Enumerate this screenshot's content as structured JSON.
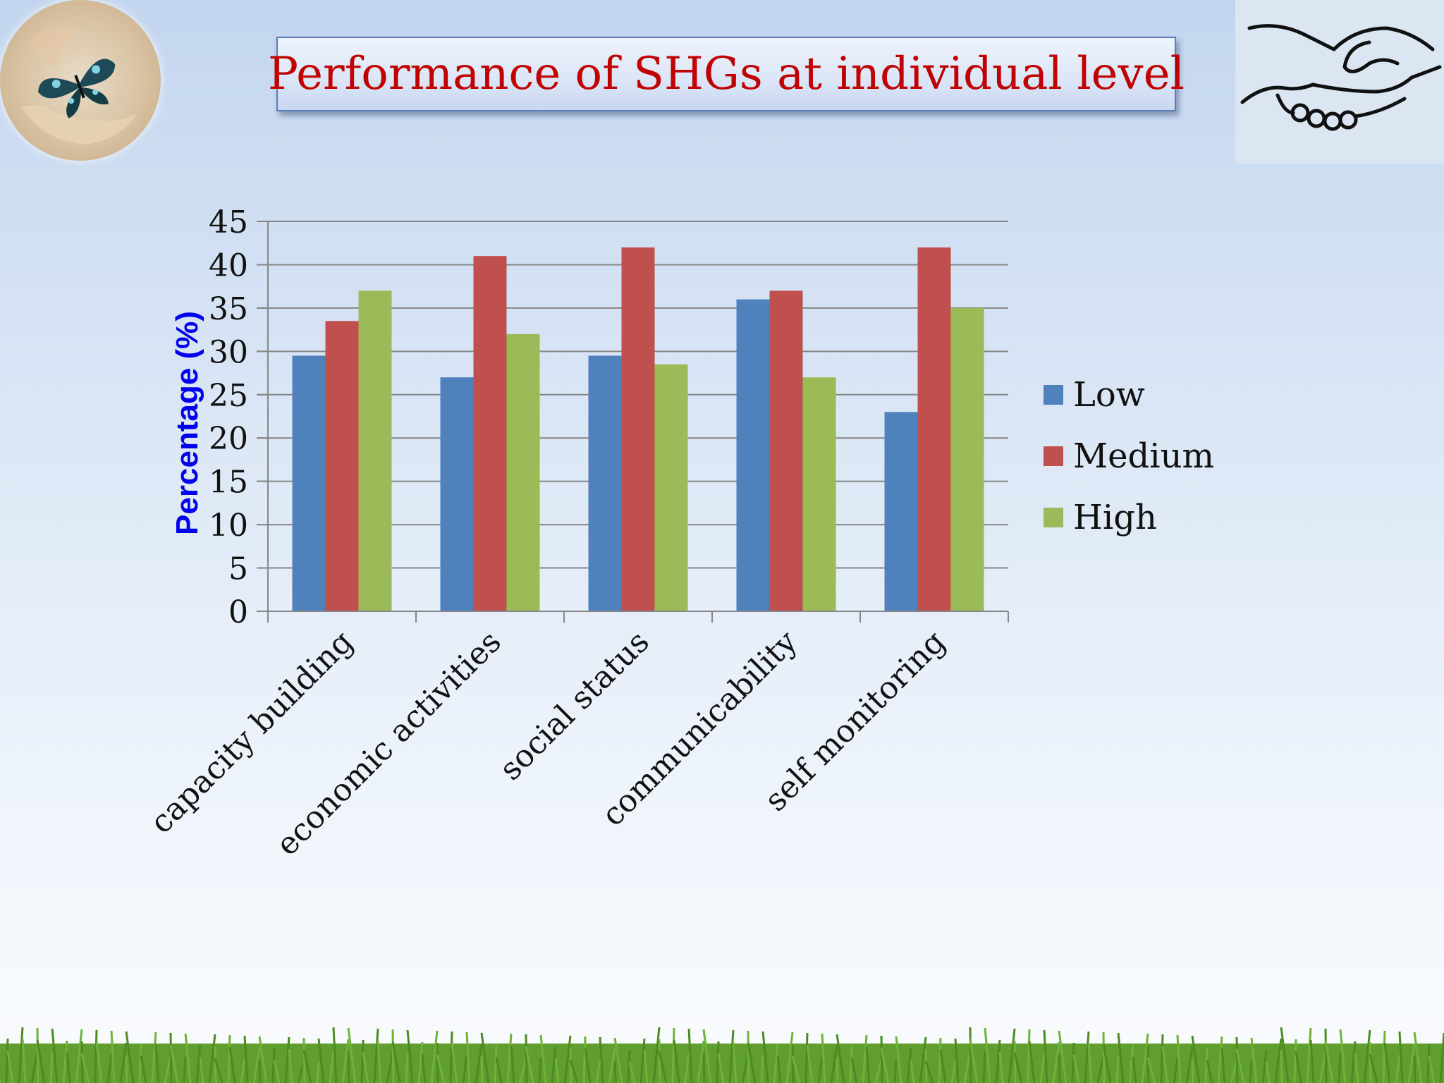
{
  "slide": {
    "title": "Performance of SHGs at individual level"
  },
  "decor": {
    "left_logo_icon": "butterfly-in-hands-icon",
    "right_logo_icon": "handshake-icon",
    "footer_decoration": "grass-strip"
  },
  "chart_data": {
    "type": "bar",
    "title": "",
    "xlabel": "",
    "ylabel": "Percentage (%)",
    "ylim": [
      0,
      45
    ],
    "yticks": [
      0,
      5,
      10,
      15,
      20,
      25,
      30,
      35,
      40,
      45
    ],
    "grid": true,
    "legend_position": "right",
    "categories": [
      "capacity building",
      "economic activities",
      "social status",
      "communicability",
      "self monitoring"
    ],
    "series": [
      {
        "name": "Low",
        "color": "#4f81bd",
        "values": [
          29.5,
          27,
          29.5,
          36,
          23
        ]
      },
      {
        "name": "Medium",
        "color": "#c0504d",
        "values": [
          33.5,
          41,
          42,
          37,
          42
        ]
      },
      {
        "name": "High",
        "color": "#9bbb59",
        "values": [
          37,
          32,
          28.5,
          27,
          35
        ]
      }
    ]
  }
}
